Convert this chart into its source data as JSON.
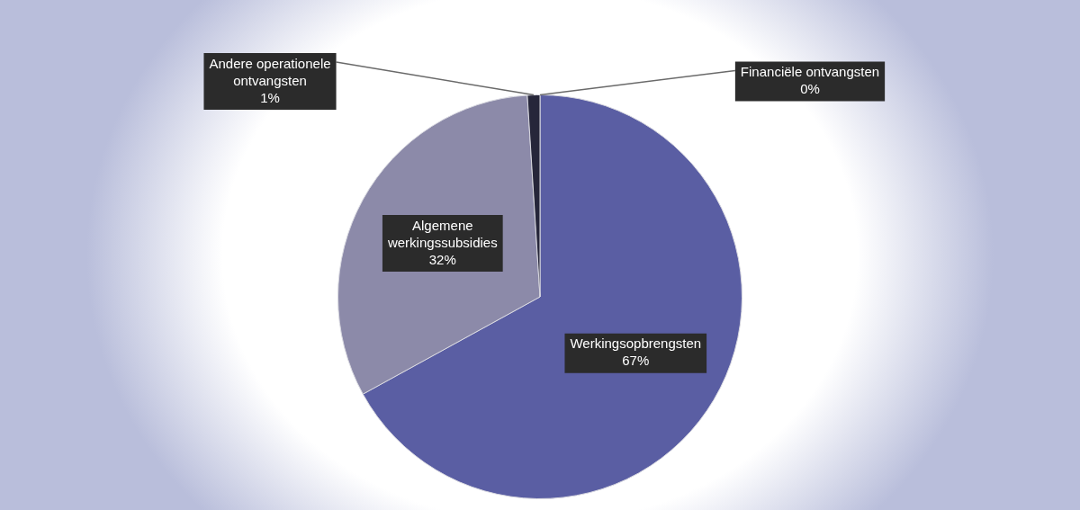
{
  "chart_data": {
    "type": "pie",
    "categories": [
      "Werkingsopbrengsten",
      "Algemene werkingssubsidies",
      "Andere operationele ontvangsten",
      "Financiële ontvangsten"
    ],
    "values": [
      67,
      32,
      1,
      0
    ],
    "colors": [
      "#5a5ea3",
      "#8c8aa9",
      "#26263a",
      "#3f7fbf"
    ],
    "value_labels": [
      "67%",
      "32%",
      "1%",
      "0%"
    ],
    "legend": false
  }
}
